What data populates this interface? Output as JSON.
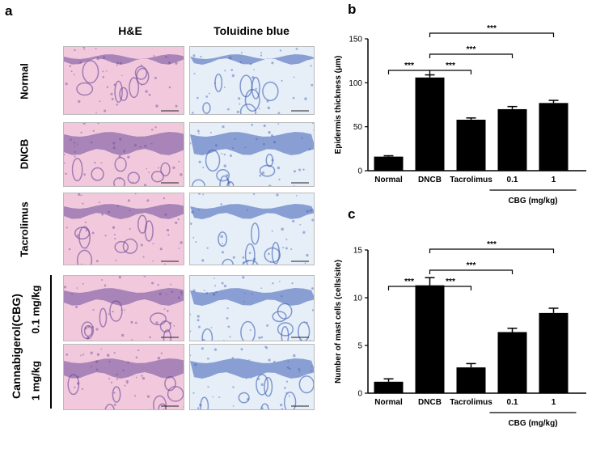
{
  "panel_a": {
    "letter": "a",
    "columns": [
      "H&E",
      "Toluidine blue"
    ],
    "rows": [
      {
        "label": "Normal"
      },
      {
        "label": "DNCB"
      },
      {
        "label": "Tacrolimus"
      },
      {
        "label": "0.1 mg/kg"
      },
      {
        "label": "1 mg/kg"
      }
    ],
    "group_label": "Cannabigerol(CBG)",
    "colors": {
      "he_bg": "#f2c9dc",
      "he_dark": "#6b4a9a",
      "tb_bg": "#e6eef8",
      "tb_dark": "#3c5fb5"
    }
  },
  "chart_data": [
    {
      "letter": "b",
      "type": "bar",
      "categories": [
        "Normal",
        "DNCB",
        "Tacrolimus",
        "0.1",
        "1"
      ],
      "values": [
        16,
        106,
        58,
        70,
        77
      ],
      "errors": [
        1,
        3,
        2,
        3,
        3
      ],
      "ylabel": "Epidermis thickness (μm)",
      "ylim": [
        0,
        150
      ],
      "yticks": [
        "0",
        "50",
        "100",
        "150"
      ],
      "group_label": "CBG (mg/kg)",
      "significance": [
        "***",
        "***",
        "***",
        "***"
      ],
      "bar_color": "#000000"
    },
    {
      "letter": "c",
      "type": "bar",
      "categories": [
        "Normal",
        "DNCB",
        "Tacrolimus",
        "0.1",
        "1"
      ],
      "values": [
        1.2,
        11.3,
        2.7,
        6.4,
        8.4
      ],
      "errors": [
        0.3,
        0.8,
        0.4,
        0.4,
        0.5
      ],
      "ylabel": "Number of mast cells (cells/site)",
      "ylim": [
        0,
        15
      ],
      "yticks": [
        "0",
        "5",
        "10",
        "15"
      ],
      "group_label": "CBG (mg/kg)",
      "significance": [
        "***",
        "***",
        "***",
        "***"
      ],
      "bar_color": "#000000"
    }
  ]
}
